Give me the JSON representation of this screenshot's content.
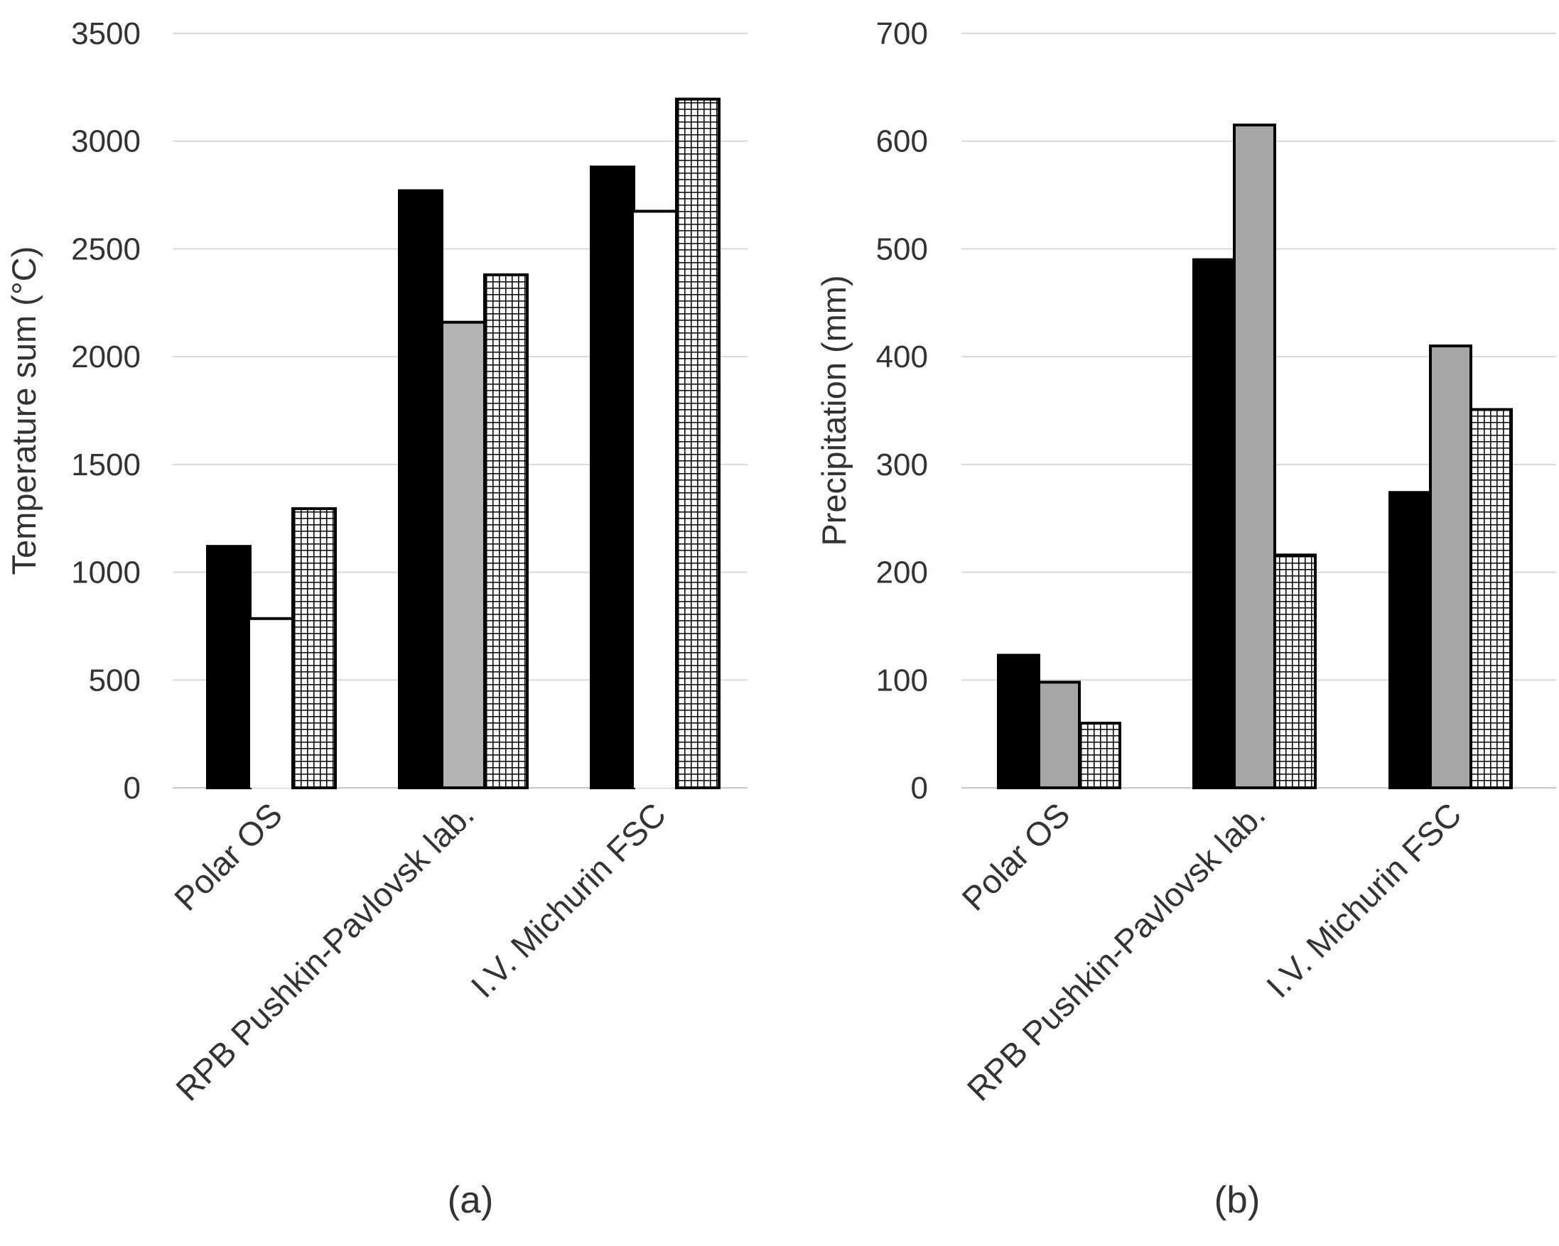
{
  "chart_data": [
    {
      "type": "bar",
      "panel_label": "(a)",
      "title": "",
      "xlabel": "",
      "ylabel": "Temperature sum (°C)",
      "ylim": [
        0,
        3500
      ],
      "yticks": [
        0,
        500,
        1000,
        1500,
        2000,
        2500,
        3000,
        3500
      ],
      "ytick_labels": [
        "0",
        "500",
        "1000",
        "1500",
        "2000",
        "2500",
        "3000",
        "3500"
      ],
      "grid": true,
      "legend": "none",
      "categories": [
        "Polar OS",
        "RPB Pushkin-Pavlovsk lab.",
        "I.V. Michurin FSC"
      ],
      "series": [
        {
          "name": "series 1",
          "fill": "#000000",
          "pattern": "solid",
          "values": [
            1120,
            2770,
            2880
          ]
        },
        {
          "name": "series 2",
          "fill": "#ffffff",
          "pattern": "solid",
          "values": [
            785,
            2160,
            2675
          ],
          "fill_by_category": [
            "#ffffff",
            "#b3b3b3",
            "#ffffff"
          ]
        },
        {
          "name": "series 3",
          "fill": "#ffffff",
          "pattern": "grid",
          "values": [
            1295,
            2380,
            3195
          ]
        }
      ]
    },
    {
      "type": "bar",
      "panel_label": "(b)",
      "title": "",
      "xlabel": "",
      "ylabel": "Precipitation (mm)",
      "ylim": [
        0,
        700
      ],
      "yticks": [
        0,
        100,
        200,
        300,
        400,
        500,
        600,
        700
      ],
      "ytick_labels": [
        "0",
        "100",
        "200",
        "300",
        "400",
        "500",
        "600",
        "700"
      ],
      "grid": true,
      "legend": "none",
      "categories": [
        "Polar OS",
        "RPB Pushkin-Pavlovsk lab.",
        "I.V. Michurin FSC"
      ],
      "series": [
        {
          "name": "series 1",
          "fill": "#000000",
          "pattern": "solid",
          "values": [
            123,
            490,
            274
          ]
        },
        {
          "name": "series 2",
          "fill": "#a6a6a6",
          "pattern": "solid",
          "values": [
            98,
            615,
            410
          ]
        },
        {
          "name": "series 3",
          "fill": "#ffffff",
          "pattern": "grid",
          "values": [
            60,
            216,
            351
          ]
        }
      ]
    }
  ]
}
